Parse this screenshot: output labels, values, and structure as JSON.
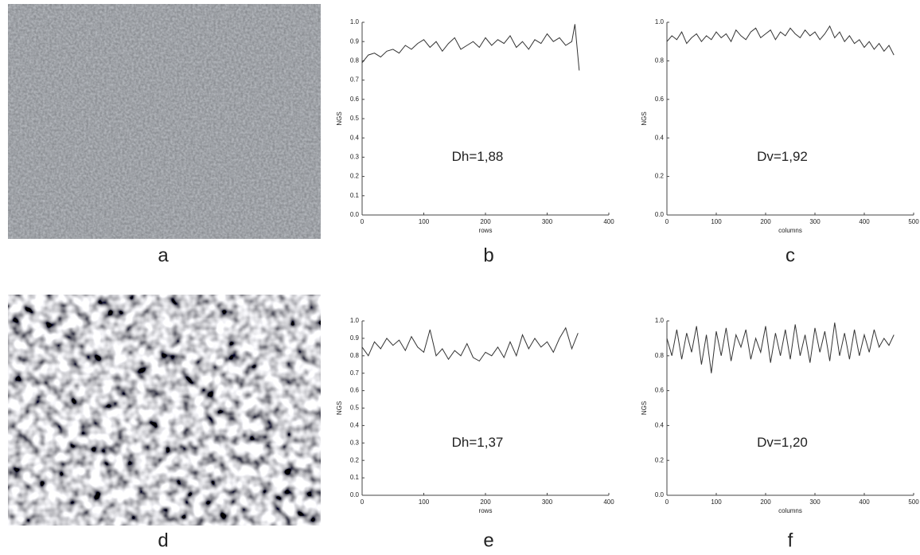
{
  "panel_labels": [
    "a",
    "b",
    "c",
    "d",
    "e",
    "f"
  ],
  "chart_data": [
    {
      "type": "line",
      "xlabel": "rows",
      "ylabel": "NGS",
      "annotation": "Dh=1,88",
      "color": "#333333",
      "xlim": [
        0,
        400
      ],
      "ylim": [
        0,
        1.0
      ],
      "xticks": [
        0,
        100,
        200,
        300,
        400
      ],
      "yticks": [
        {
          "value": 0,
          "label": "0.0"
        },
        0.1,
        0.2,
        0.3,
        0.4,
        0.5,
        0.6,
        0.7,
        0.8,
        0.9,
        {
          "value": 1,
          "label": "1.0"
        }
      ],
      "x": [
        0,
        10,
        20,
        30,
        40,
        50,
        60,
        70,
        80,
        90,
        100,
        110,
        120,
        130,
        140,
        150,
        160,
        170,
        180,
        190,
        200,
        210,
        220,
        230,
        240,
        250,
        260,
        270,
        280,
        290,
        300,
        310,
        320,
        330,
        340,
        345,
        352
      ],
      "values": [
        0.79,
        0.83,
        0.84,
        0.82,
        0.85,
        0.86,
        0.84,
        0.88,
        0.86,
        0.89,
        0.91,
        0.87,
        0.9,
        0.85,
        0.89,
        0.92,
        0.86,
        0.88,
        0.9,
        0.87,
        0.92,
        0.88,
        0.91,
        0.89,
        0.93,
        0.87,
        0.9,
        0.86,
        0.91,
        0.89,
        0.94,
        0.9,
        0.92,
        0.88,
        0.9,
        0.99,
        0.75
      ]
    },
    {
      "type": "line",
      "xlabel": "columns",
      "ylabel": "NGS",
      "annotation": "Dv=1,92",
      "color": "#333333",
      "xlim": [
        0,
        500
      ],
      "ylim": [
        0,
        1.0
      ],
      "xticks": [
        0,
        100,
        200,
        300,
        400,
        500
      ],
      "yticks": [
        {
          "value": 0,
          "label": "0.0"
        },
        0.2,
        0.4,
        0.6,
        0.8,
        {
          "value": 1,
          "label": "1.0"
        }
      ],
      "x": [
        0,
        10,
        20,
        30,
        40,
        50,
        60,
        70,
        80,
        90,
        100,
        110,
        120,
        130,
        140,
        150,
        160,
        170,
        180,
        190,
        200,
        210,
        220,
        230,
        240,
        250,
        260,
        270,
        280,
        290,
        300,
        310,
        320,
        330,
        340,
        350,
        360,
        370,
        380,
        390,
        400,
        410,
        420,
        430,
        440,
        450,
        460
      ],
      "values": [
        0.9,
        0.93,
        0.91,
        0.95,
        0.89,
        0.92,
        0.94,
        0.9,
        0.93,
        0.91,
        0.95,
        0.92,
        0.94,
        0.9,
        0.96,
        0.93,
        0.91,
        0.95,
        0.97,
        0.92,
        0.94,
        0.96,
        0.91,
        0.95,
        0.93,
        0.97,
        0.94,
        0.92,
        0.96,
        0.93,
        0.95,
        0.91,
        0.94,
        0.98,
        0.92,
        0.95,
        0.9,
        0.93,
        0.89,
        0.91,
        0.87,
        0.9,
        0.86,
        0.89,
        0.85,
        0.88,
        0.83
      ]
    },
    {
      "type": "line",
      "xlabel": "rows",
      "ylabel": "NGS",
      "annotation": "Dh=1,37",
      "color": "#333333",
      "xlim": [
        0,
        400
      ],
      "ylim": [
        0,
        1.0
      ],
      "xticks": [
        0,
        100,
        200,
        300,
        400
      ],
      "yticks": [
        {
          "value": 0,
          "label": "0.0"
        },
        0.1,
        0.2,
        0.3,
        0.4,
        0.5,
        0.6,
        0.7,
        0.8,
        0.9,
        {
          "value": 1,
          "label": "1.0"
        }
      ],
      "x": [
        0,
        10,
        20,
        30,
        40,
        50,
        60,
        70,
        80,
        90,
        100,
        110,
        120,
        130,
        140,
        150,
        160,
        170,
        180,
        190,
        200,
        210,
        220,
        230,
        240,
        250,
        260,
        270,
        280,
        290,
        300,
        310,
        320,
        330,
        340,
        350
      ],
      "values": [
        0.85,
        0.8,
        0.88,
        0.84,
        0.9,
        0.86,
        0.89,
        0.83,
        0.91,
        0.85,
        0.82,
        0.95,
        0.8,
        0.84,
        0.78,
        0.83,
        0.8,
        0.87,
        0.79,
        0.77,
        0.82,
        0.8,
        0.85,
        0.79,
        0.88,
        0.8,
        0.92,
        0.84,
        0.9,
        0.85,
        0.88,
        0.82,
        0.9,
        0.96,
        0.84,
        0.93
      ]
    },
    {
      "type": "line",
      "xlabel": "columns",
      "ylabel": "NGS",
      "annotation": "Dv=1,20",
      "color": "#333333",
      "xlim": [
        0,
        500
      ],
      "ylim": [
        0,
        1.0
      ],
      "xticks": [
        0,
        100,
        200,
        300,
        400,
        500
      ],
      "yticks": [
        {
          "value": 0,
          "label": "0.0"
        },
        0.2,
        0.4,
        0.6,
        0.8,
        {
          "value": 1,
          "label": "1.0"
        }
      ],
      "x": [
        0,
        10,
        20,
        30,
        40,
        50,
        60,
        70,
        80,
        90,
        100,
        110,
        120,
        130,
        140,
        150,
        160,
        170,
        180,
        190,
        200,
        210,
        220,
        230,
        240,
        250,
        260,
        270,
        280,
        290,
        300,
        310,
        320,
        330,
        340,
        350,
        360,
        370,
        380,
        390,
        400,
        410,
        420,
        430,
        440,
        450,
        460
      ],
      "values": [
        0.9,
        0.8,
        0.95,
        0.78,
        0.93,
        0.82,
        0.97,
        0.75,
        0.92,
        0.7,
        0.94,
        0.8,
        0.96,
        0.77,
        0.92,
        0.85,
        0.95,
        0.78,
        0.9,
        0.82,
        0.97,
        0.76,
        0.93,
        0.8,
        0.95,
        0.78,
        0.98,
        0.8,
        0.92,
        0.76,
        0.96,
        0.82,
        0.94,
        0.77,
        0.99,
        0.8,
        0.93,
        0.78,
        0.95,
        0.8,
        0.92,
        0.82,
        0.95,
        0.85,
        0.9,
        0.86,
        0.92
      ]
    }
  ]
}
